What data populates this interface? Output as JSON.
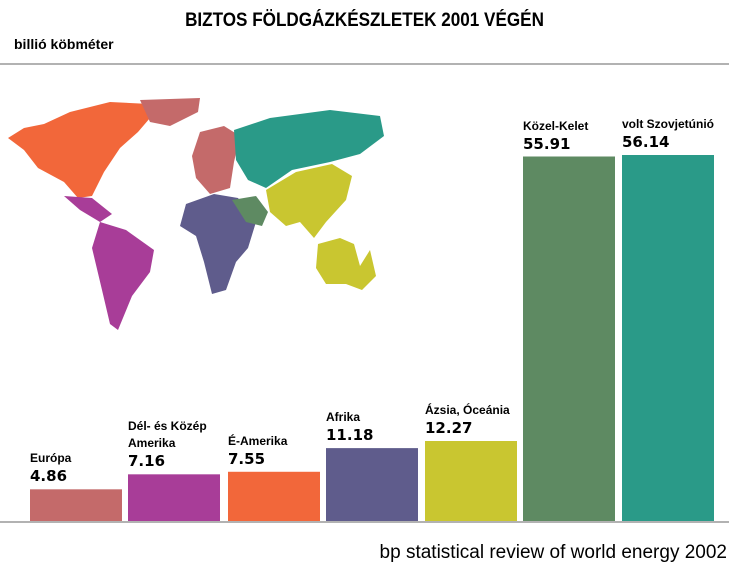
{
  "chart_data": {
    "type": "bar",
    "title": "BIZTOS FÖLDGÁZKÉSZLETEK 2001 VÉGÉN",
    "y_label": "billió köbméter",
    "source": "bp statistical review of world energy 2002",
    "categories": [
      "Európa",
      "Dél- és Közép Amerika",
      "É-Amerika",
      "Afrika",
      "Ázsia, Óceánia",
      "Közel-Kelet",
      "volt Szovjetúnió"
    ],
    "values": [
      4.86,
      7.16,
      7.55,
      11.18,
      12.27,
      55.91,
      56.14
    ],
    "colors": [
      "#c46a6a",
      "#a83d98",
      "#f2673a",
      "#5f5c8c",
      "#c9c630",
      "#5e8a62",
      "#2a9a88"
    ]
  }
}
